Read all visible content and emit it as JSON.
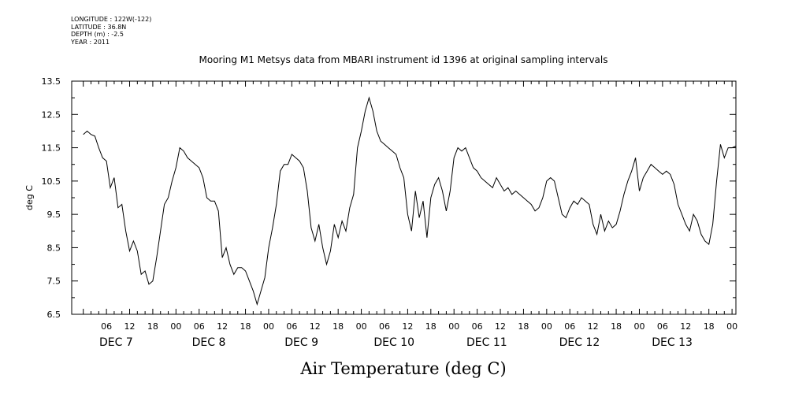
{
  "header": {
    "longitude": "LONGITUDE : 122W(-122)",
    "latitude": "LATITUDE : 36.8N",
    "depth": "DEPTH (m) : -2.5",
    "year": "YEAR : 2011"
  },
  "chart_data": {
    "type": "line",
    "title": "Mooring M1 Metsys data from MBARI instrument id 1396 at original sampling intervals",
    "xlabel": "Air Temperature (deg C)",
    "ylabel": "deg C",
    "ylim": [
      6.5,
      13.5
    ],
    "yticks": [
      "6.5",
      "7.5",
      "8.5",
      "9.5",
      "10.5",
      "11.5",
      "12.5",
      "13.5"
    ],
    "x_unit": "hours since DEC 7 00:00",
    "xlim": [
      -3,
      169
    ],
    "hour_tick_labels": [
      "06",
      "12",
      "18",
      "00"
    ],
    "day_labels": [
      "DEC  7",
      "DEC  8",
      "DEC  9",
      "DEC 10",
      "DEC 11",
      "DEC 12",
      "DEC 13"
    ],
    "grid": false,
    "series": [
      {
        "color": "#000000",
        "points": [
          [
            0,
            11.9
          ],
          [
            1,
            12.0
          ],
          [
            2,
            11.9
          ],
          [
            3,
            11.85
          ],
          [
            4,
            11.5
          ],
          [
            5,
            11.2
          ],
          [
            6,
            11.1
          ],
          [
            7,
            10.3
          ],
          [
            8,
            10.6
          ],
          [
            9,
            9.7
          ],
          [
            10,
            9.8
          ],
          [
            11,
            9.0
          ],
          [
            12,
            8.4
          ],
          [
            13,
            8.7
          ],
          [
            14,
            8.4
          ],
          [
            15,
            7.7
          ],
          [
            16,
            7.8
          ],
          [
            17,
            7.4
          ],
          [
            18,
            7.5
          ],
          [
            19,
            8.2
          ],
          [
            20,
            9.0
          ],
          [
            21,
            9.8
          ],
          [
            22,
            10.0
          ],
          [
            23,
            10.5
          ],
          [
            24,
            10.9
          ],
          [
            25,
            11.5
          ],
          [
            26,
            11.4
          ],
          [
            27,
            11.2
          ],
          [
            28,
            11.1
          ],
          [
            29,
            11.0
          ],
          [
            30,
            10.9
          ],
          [
            31,
            10.6
          ],
          [
            32,
            10.0
          ],
          [
            33,
            9.9
          ],
          [
            34,
            9.9
          ],
          [
            35,
            9.6
          ],
          [
            36,
            8.2
          ],
          [
            37,
            8.5
          ],
          [
            38,
            8.0
          ],
          [
            39,
            7.7
          ],
          [
            40,
            7.9
          ],
          [
            41,
            7.9
          ],
          [
            42,
            7.8
          ],
          [
            43,
            7.5
          ],
          [
            44,
            7.2
          ],
          [
            45,
            6.8
          ],
          [
            46,
            7.2
          ],
          [
            47,
            7.6
          ],
          [
            48,
            8.5
          ],
          [
            49,
            9.1
          ],
          [
            50,
            9.8
          ],
          [
            51,
            10.8
          ],
          [
            52,
            11.0
          ],
          [
            53,
            11.0
          ],
          [
            54,
            11.3
          ],
          [
            55,
            11.2
          ],
          [
            56,
            11.1
          ],
          [
            57,
            10.9
          ],
          [
            58,
            10.2
          ],
          [
            59,
            9.1
          ],
          [
            60,
            8.7
          ],
          [
            61,
            9.2
          ],
          [
            62,
            8.5
          ],
          [
            63,
            8.0
          ],
          [
            64,
            8.4
          ],
          [
            65,
            9.2
          ],
          [
            66,
            8.8
          ],
          [
            67,
            9.3
          ],
          [
            68,
            9.0
          ],
          [
            69,
            9.7
          ],
          [
            70,
            10.1
          ],
          [
            71,
            11.5
          ],
          [
            72,
            12.0
          ],
          [
            73,
            12.6
          ],
          [
            74,
            13.0
          ],
          [
            75,
            12.6
          ],
          [
            76,
            12.0
          ],
          [
            77,
            11.7
          ],
          [
            78,
            11.6
          ],
          [
            79,
            11.5
          ],
          [
            80,
            11.4
          ],
          [
            81,
            11.3
          ],
          [
            82,
            10.9
          ],
          [
            83,
            10.6
          ],
          [
            84,
            9.5
          ],
          [
            85,
            9.0
          ],
          [
            86,
            10.2
          ],
          [
            87,
            9.4
          ],
          [
            88,
            9.9
          ],
          [
            89,
            8.8
          ],
          [
            90,
            10.0
          ],
          [
            91,
            10.4
          ],
          [
            92,
            10.6
          ],
          [
            93,
            10.2
          ],
          [
            94,
            9.6
          ],
          [
            95,
            10.2
          ],
          [
            96,
            11.2
          ],
          [
            97,
            11.5
          ],
          [
            98,
            11.4
          ],
          [
            99,
            11.5
          ],
          [
            100,
            11.2
          ],
          [
            101,
            10.9
          ],
          [
            102,
            10.8
          ],
          [
            103,
            10.6
          ],
          [
            104,
            10.5
          ],
          [
            105,
            10.4
          ],
          [
            106,
            10.3
          ],
          [
            107,
            10.6
          ],
          [
            108,
            10.4
          ],
          [
            109,
            10.2
          ],
          [
            110,
            10.3
          ],
          [
            111,
            10.1
          ],
          [
            112,
            10.2
          ],
          [
            113,
            10.1
          ],
          [
            114,
            10.0
          ],
          [
            115,
            9.9
          ],
          [
            116,
            9.8
          ],
          [
            117,
            9.6
          ],
          [
            118,
            9.7
          ],
          [
            119,
            10.0
          ],
          [
            120,
            10.5
          ],
          [
            121,
            10.6
          ],
          [
            122,
            10.5
          ],
          [
            123,
            10.0
          ],
          [
            124,
            9.5
          ],
          [
            125,
            9.4
          ],
          [
            126,
            9.7
          ],
          [
            127,
            9.9
          ],
          [
            128,
            9.8
          ],
          [
            129,
            10.0
          ],
          [
            130,
            9.9
          ],
          [
            131,
            9.8
          ],
          [
            132,
            9.2
          ],
          [
            133,
            8.9
          ],
          [
            134,
            9.5
          ],
          [
            135,
            9.0
          ],
          [
            136,
            9.3
          ],
          [
            137,
            9.1
          ],
          [
            138,
            9.2
          ],
          [
            139,
            9.6
          ],
          [
            140,
            10.1
          ],
          [
            141,
            10.5
          ],
          [
            142,
            10.8
          ],
          [
            143,
            11.2
          ],
          [
            144,
            10.2
          ],
          [
            145,
            10.6
          ],
          [
            146,
            10.8
          ],
          [
            147,
            11.0
          ],
          [
            148,
            10.9
          ],
          [
            149,
            10.8
          ],
          [
            150,
            10.7
          ],
          [
            151,
            10.8
          ],
          [
            152,
            10.7
          ],
          [
            153,
            10.4
          ],
          [
            154,
            9.8
          ],
          [
            155,
            9.5
          ],
          [
            156,
            9.2
          ],
          [
            157,
            9.0
          ],
          [
            158,
            9.5
          ],
          [
            159,
            9.3
          ],
          [
            160,
            8.9
          ],
          [
            161,
            8.7
          ],
          [
            162,
            8.6
          ],
          [
            163,
            9.2
          ],
          [
            164,
            10.5
          ],
          [
            165,
            11.6
          ],
          [
            166,
            11.2
          ],
          [
            167,
            11.5
          ],
          [
            168,
            11.5
          ],
          [
            169,
            11.55
          ]
        ]
      }
    ]
  }
}
